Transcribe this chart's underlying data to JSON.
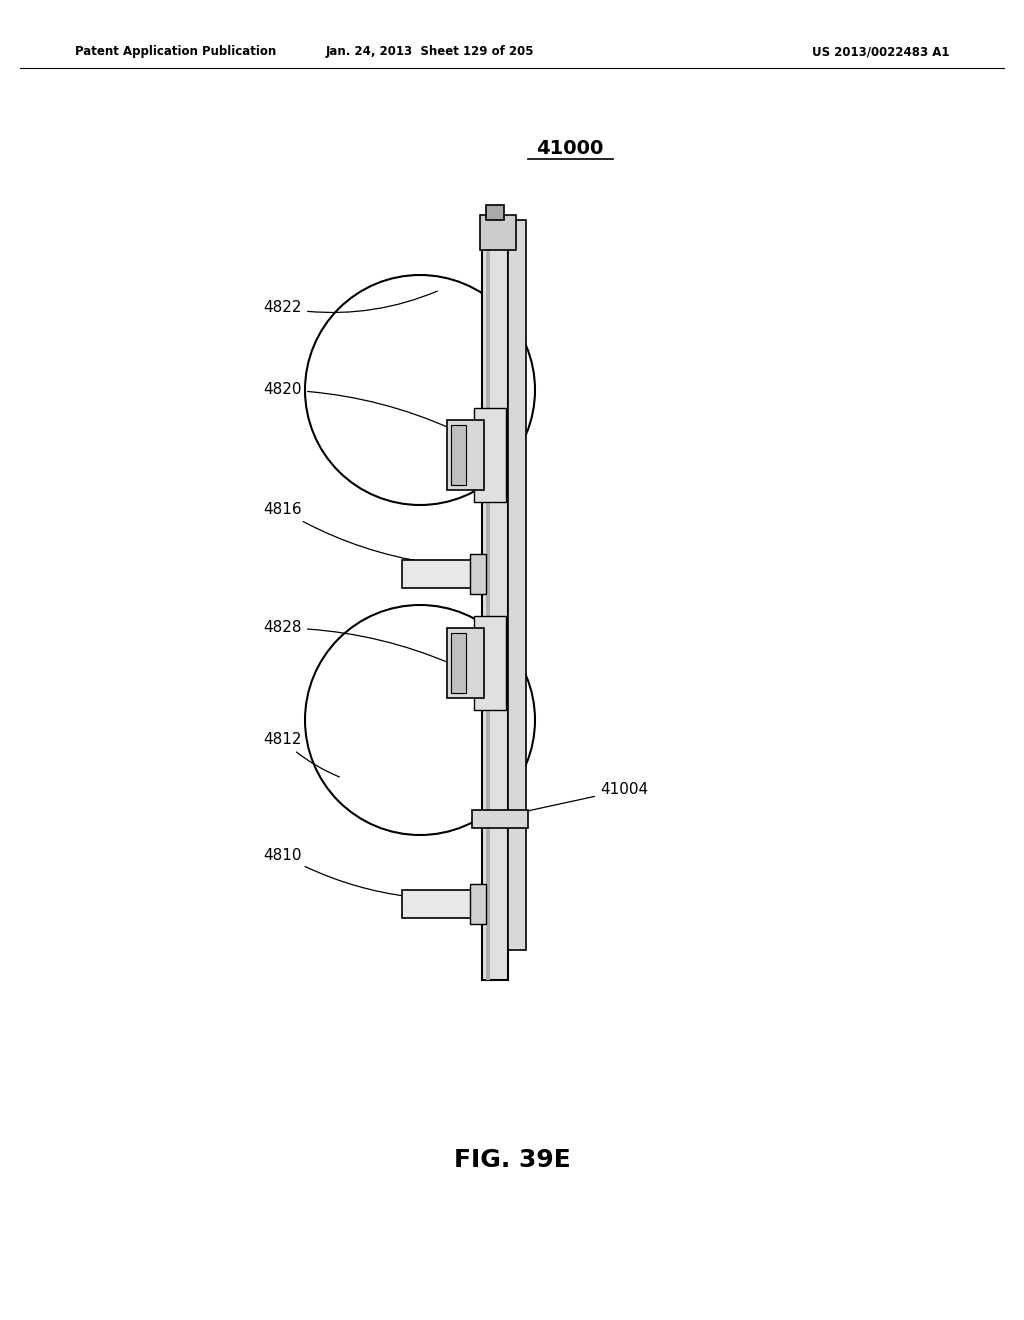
{
  "bg_color": "#ffffff",
  "header_left": "Patent Application Publication",
  "header_mid": "Jan. 24, 2013  Sheet 129 of 205",
  "header_right": "US 2013/0022483 A1",
  "fig_label": "FIG. 39E",
  "main_label": "41000",
  "label_fontsize": 11,
  "header_fontsize": 8.5,
  "fig_label_fontsize": 18,
  "main_label_fontsize": 14
}
